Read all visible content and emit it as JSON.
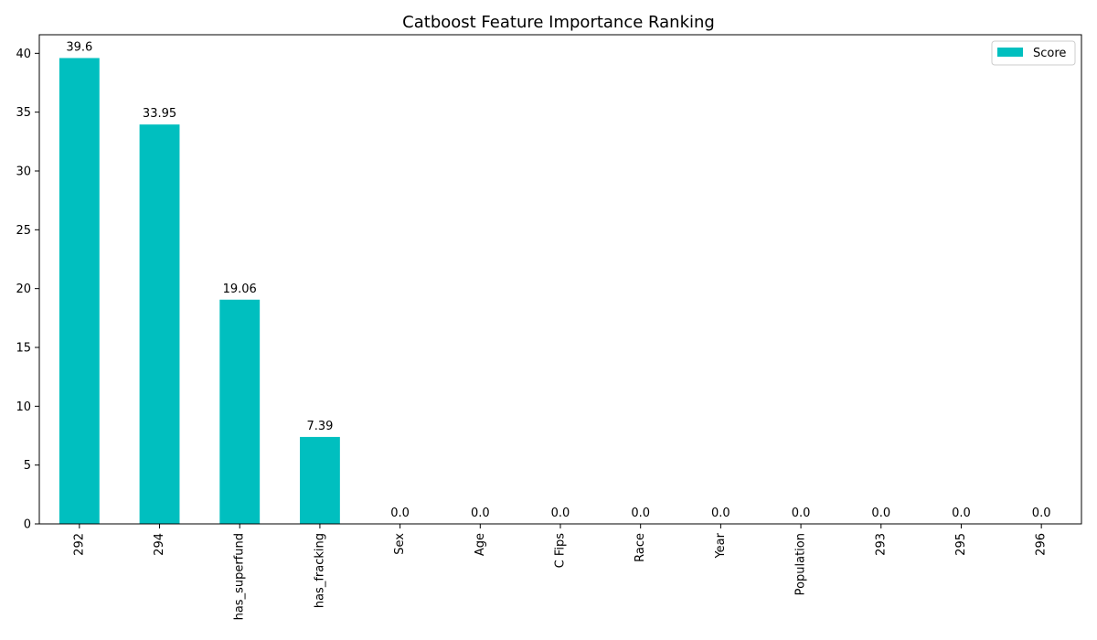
{
  "chart_data": {
    "type": "bar",
    "title": "Catboost Feature Importance Ranking",
    "xlabel": "",
    "ylabel": "",
    "categories": [
      "292",
      "294",
      "has_superfund",
      "has_fracking",
      "Sex",
      "Age",
      "C Fips",
      "Race",
      "Year",
      "Population",
      "293",
      "295",
      "296"
    ],
    "series": [
      {
        "name": "Score",
        "values": [
          39.6,
          33.95,
          19.06,
          7.39,
          0.0,
          0.0,
          0.0,
          0.0,
          0.0,
          0.0,
          0.0,
          0.0,
          0.0
        ],
        "labels": [
          "39.6",
          "33.95",
          "19.06",
          "7.39",
          "0.0",
          "0.0",
          "0.0",
          "0.0",
          "0.0",
          "0.0",
          "0.0",
          "0.0",
          "0.0"
        ]
      }
    ],
    "ylim": [
      0,
      41.58
    ],
    "yticks": [
      0,
      5,
      10,
      15,
      20,
      25,
      30,
      35,
      40
    ],
    "grid": false,
    "legend_position": "top-right",
    "bar_color": "#00bfbf"
  }
}
